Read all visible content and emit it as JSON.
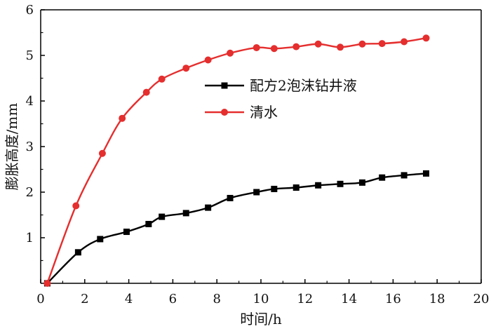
{
  "chart_data": {
    "type": "line",
    "title": "",
    "xlabel": "时间/h",
    "ylabel": "膨胀高度/mm",
    "xlim": [
      0,
      20
    ],
    "ylim": [
      0,
      6
    ],
    "xticks": [
      "0",
      "2",
      "4",
      "6",
      "8",
      "10",
      "12",
      "14",
      "16",
      "18",
      "20"
    ],
    "yticks": [
      "1",
      "2",
      "3",
      "4",
      "5",
      "6"
    ],
    "grid": false,
    "legend_position": "center-right",
    "series": [
      {
        "name": "配方2泡沫钻井液",
        "color": "#000000",
        "marker": "square",
        "x": [
          0.3,
          1.7,
          2.7,
          3.9,
          4.9,
          5.5,
          6.6,
          7.6,
          8.6,
          9.8,
          10.6,
          11.6,
          12.6,
          13.6,
          14.6,
          15.5,
          16.5,
          17.5
        ],
        "y": [
          0.0,
          0.68,
          0.97,
          1.13,
          1.3,
          1.46,
          1.54,
          1.66,
          1.87,
          2.0,
          2.07,
          2.1,
          2.15,
          2.18,
          2.21,
          2.32,
          2.37,
          2.41
        ]
      },
      {
        "name": "清水",
        "color": "#e52e2e",
        "marker": "circle",
        "x": [
          0.3,
          1.6,
          2.8,
          3.7,
          4.8,
          5.5,
          6.6,
          7.6,
          8.6,
          9.8,
          10.6,
          11.6,
          12.6,
          13.6,
          14.6,
          15.5,
          16.5,
          17.5
        ],
        "y": [
          0.0,
          1.7,
          2.85,
          3.62,
          4.19,
          4.48,
          4.72,
          4.9,
          5.05,
          5.17,
          5.15,
          5.19,
          5.25,
          5.18,
          5.25,
          5.26,
          5.3,
          5.38
        ]
      }
    ]
  }
}
